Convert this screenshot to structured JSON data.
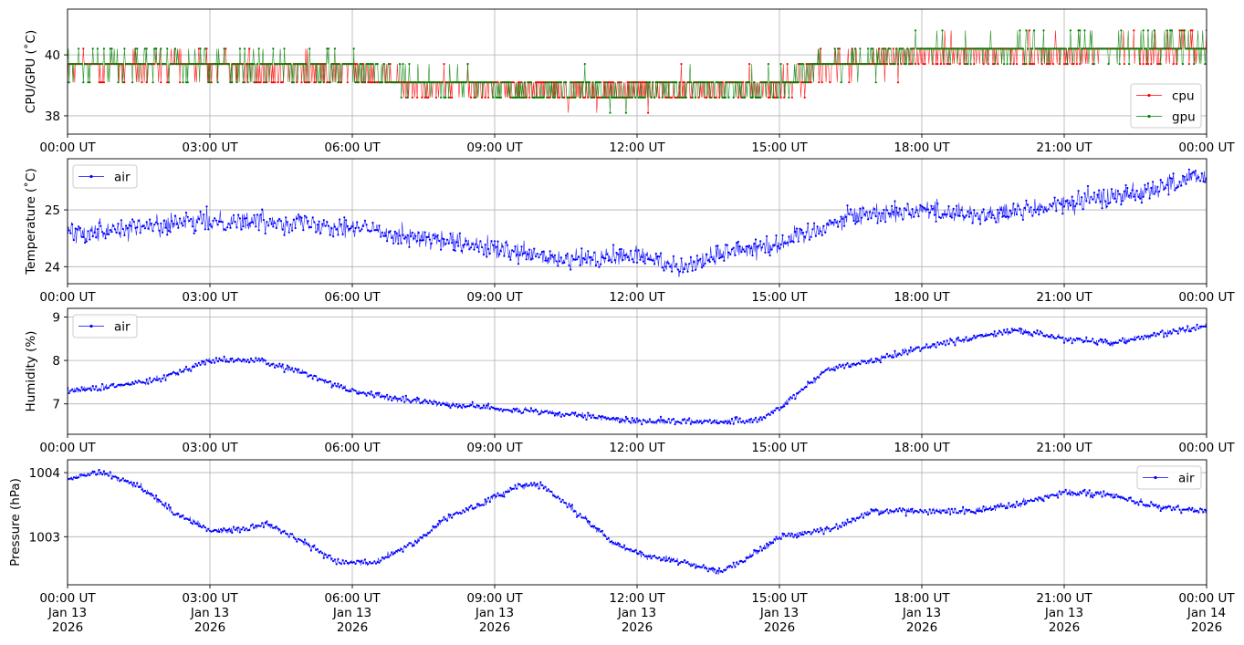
{
  "chart_data": [
    {
      "type": "line",
      "ylabel": "CPU/GPU (˚C)",
      "xlim": [
        "00:00 UT",
        "00:00 UT"
      ],
      "x_ticks": [
        "00:00 UT",
        "03:00 UT",
        "06:00 UT",
        "09:00 UT",
        "12:00 UT",
        "15:00 UT",
        "18:00 UT",
        "21:00 UT",
        "00:00 UT"
      ],
      "y_ticks": [
        "38",
        "40"
      ],
      "ylim": [
        37.4,
        41.5
      ],
      "grid": true,
      "legend_placement": "lower-right",
      "series": [
        {
          "name": "cpu",
          "color": "#ff0000",
          "levels": [
            37.6,
            38.1,
            38.6,
            39.1,
            39.7,
            40.2,
            40.8,
            41.3
          ],
          "trend_x": [
            0,
            3,
            6,
            7,
            9,
            12,
            15,
            16,
            18,
            21,
            24
          ],
          "trend_y": [
            39.6,
            39.6,
            39.5,
            39.1,
            38.9,
            38.8,
            39.0,
            39.6,
            40.0,
            40.1,
            40.2
          ]
        },
        {
          "name": "gpu",
          "color": "#008000",
          "levels": [
            37.6,
            38.1,
            38.6,
            39.1,
            39.7,
            40.2,
            40.8
          ],
          "trend_x": [
            0,
            3,
            6,
            7,
            9,
            12,
            15,
            16,
            18,
            21,
            24
          ],
          "trend_y": [
            39.7,
            39.7,
            39.6,
            39.2,
            38.9,
            38.8,
            39.0,
            39.7,
            40.1,
            40.2,
            40.3
          ]
        }
      ]
    },
    {
      "type": "line",
      "ylabel": "Temperature (˚C)",
      "x_ticks": [
        "00:00 UT",
        "03:00 UT",
        "06:00 UT",
        "09:00 UT",
        "12:00 UT",
        "15:00 UT",
        "18:00 UT",
        "21:00 UT",
        "00:00 UT"
      ],
      "y_ticks": [
        "24",
        "25"
      ],
      "ylim": [
        23.7,
        25.9
      ],
      "grid": true,
      "legend_placement": "upper-left",
      "series": [
        {
          "name": "air",
          "color": "#0000ff",
          "trend_x": [
            0,
            1.5,
            3,
            4.5,
            6,
            7.5,
            9,
            10.5,
            12,
            13,
            14,
            15,
            16.5,
            18,
            19.5,
            21,
            22.5,
            24
          ],
          "trend_y": [
            24.6,
            24.7,
            24.8,
            24.8,
            24.7,
            24.5,
            24.3,
            24.1,
            24.2,
            24.0,
            24.3,
            24.4,
            24.9,
            25.0,
            24.9,
            25.1,
            25.3,
            25.6
          ],
          "noise": 0.18
        }
      ]
    },
    {
      "type": "line",
      "ylabel": "Humidity (%)",
      "x_ticks": [
        "00:00 UT",
        "03:00 UT",
        "06:00 UT",
        "09:00 UT",
        "12:00 UT",
        "15:00 UT",
        "18:00 UT",
        "21:00 UT",
        "00:00 UT"
      ],
      "y_ticks": [
        "7",
        "8",
        "9"
      ],
      "ylim": [
        6.3,
        9.2
      ],
      "grid": true,
      "legend_placement": "upper-left",
      "series": [
        {
          "name": "air",
          "color": "#0000ff",
          "trend_x": [
            0,
            1,
            2,
            3,
            4,
            5,
            6,
            7,
            8,
            9,
            10,
            11,
            12,
            13,
            14,
            14.5,
            15,
            16,
            17,
            18,
            19,
            20,
            21,
            22,
            23,
            24
          ],
          "trend_y": [
            7.3,
            7.4,
            7.6,
            8.0,
            8.0,
            7.7,
            7.3,
            7.1,
            7.0,
            6.9,
            6.8,
            6.7,
            6.6,
            6.6,
            6.6,
            6.6,
            6.9,
            7.8,
            8.0,
            8.3,
            8.5,
            8.7,
            8.5,
            8.4,
            8.6,
            8.8
          ],
          "noise": 0.07
        }
      ]
    },
    {
      "type": "line",
      "ylabel": "Pressure (hPa)",
      "x_ticks": [
        "00:00 UT\nJan 13\n2026",
        "03:00 UT\nJan 13\n2026",
        "06:00 UT\nJan 13\n2026",
        "09:00 UT\nJan 13\n2026",
        "12:00 UT\nJan 13\n2026",
        "15:00 UT\nJan 13\n2026",
        "18:00 UT\nJan 13\n2026",
        "21:00 UT\nJan 13\n2026",
        "00:00 UT\nJan 14\n2026"
      ],
      "y_ticks": [
        "1003",
        "1004"
      ],
      "ylim": [
        1002.25,
        1004.2
      ],
      "grid": true,
      "legend_placement": "upper-right",
      "series": [
        {
          "name": "air",
          "color": "#0000ff",
          "trend_x": [
            0,
            0.7,
            1.5,
            2.2,
            3.0,
            3.5,
            4.2,
            5.0,
            5.7,
            6.5,
            7.3,
            8.0,
            8.7,
            9.5,
            10.0,
            10.7,
            11.5,
            12.2,
            13.0,
            13.8,
            14.5,
            15.0,
            16.0,
            17.0,
            18.0,
            19.0,
            20.0,
            21.0,
            22.0,
            23.0,
            24.0
          ],
          "trend_y": [
            1003.9,
            1004.0,
            1003.8,
            1003.4,
            1003.1,
            1003.1,
            1003.2,
            1002.9,
            1002.6,
            1002.6,
            1002.9,
            1003.3,
            1003.5,
            1003.8,
            1003.8,
            1003.4,
            1002.9,
            1002.7,
            1002.6,
            1002.45,
            1002.75,
            1003.0,
            1003.1,
            1003.4,
            1003.4,
            1003.4,
            1003.5,
            1003.7,
            1003.65,
            1003.45,
            1003.4
          ],
          "noise": 0.05
        }
      ]
    }
  ]
}
